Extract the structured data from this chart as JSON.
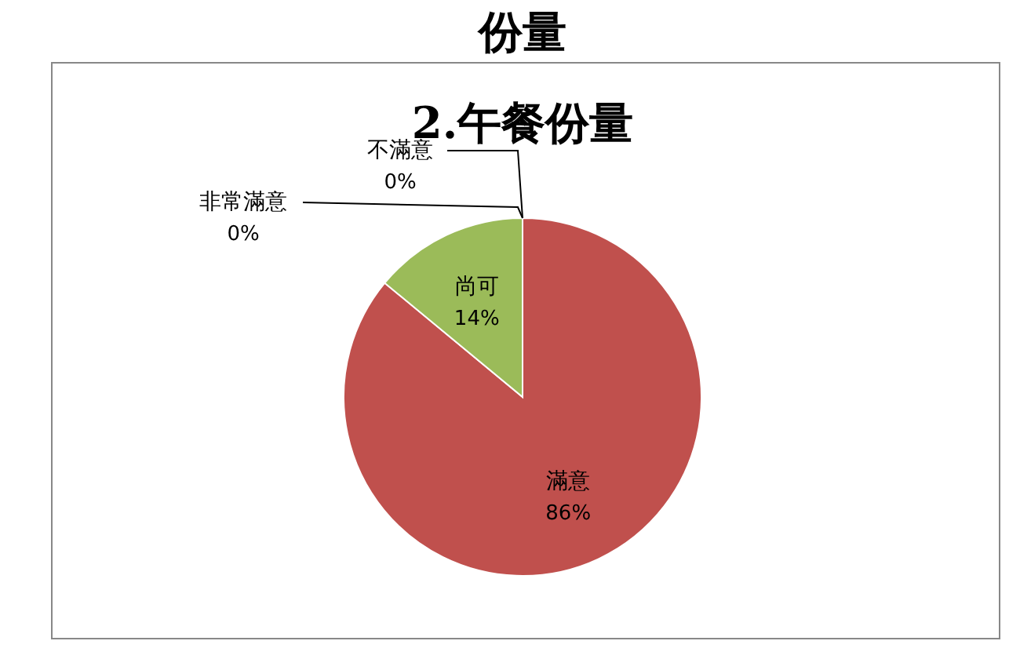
{
  "chart_data": {
    "type": "pie",
    "title": "份量",
    "subtitle": "2.午餐份量",
    "categories": [
      "非常滿意",
      "滿意",
      "尚可",
      "不滿意"
    ],
    "values": [
      0,
      86,
      14,
      0
    ],
    "colors": [
      "#4f81bd",
      "#c0504d",
      "#9bbb59",
      "#8064a2"
    ],
    "value_labels": [
      "0%",
      "86%",
      "14%",
      "0%"
    ]
  }
}
